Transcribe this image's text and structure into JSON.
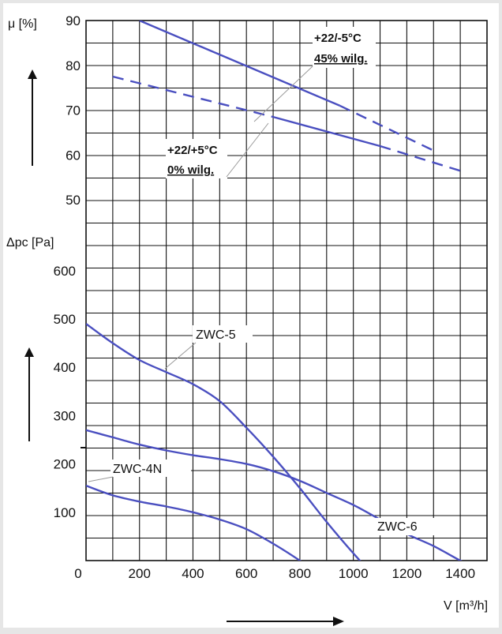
{
  "chart_data": [
    {
      "type": "line",
      "title": "",
      "ylabel": "μ [%]",
      "yticks": [
        50,
        60,
        70,
        80,
        90
      ],
      "ylim": [
        46,
        90
      ],
      "xlim": [
        0,
        1500
      ],
      "series": [
        {
          "name": "+22/-5°C 45% wilg.",
          "style": "solid",
          "x": [
            200,
            950
          ],
          "y": [
            90,
            71
          ]
        },
        {
          "name": "+22/-5°C 45% wilg.",
          "style": "dashed",
          "x": [
            950,
            1300
          ],
          "y": [
            71,
            61
          ]
        },
        {
          "name": "+22/+5°C 0% wilg.",
          "style": "dashed",
          "x": [
            100,
            700
          ],
          "y": [
            77.5,
            68.5
          ]
        },
        {
          "name": "+22/+5°C 0% wilg.",
          "style": "solid",
          "x": [
            700,
            1100
          ],
          "y": [
            68.5,
            62
          ]
        },
        {
          "name": "+22/+5°C 0% wilg.",
          "style": "dashed",
          "x": [
            1100,
            1400
          ],
          "y": [
            62,
            56.5
          ]
        }
      ],
      "annotations": [
        {
          "line1": "+22/-5°C",
          "line2": "45% wilg."
        },
        {
          "line1": "+22/+5°C",
          "line2": "0% wilg."
        }
      ]
    },
    {
      "type": "line",
      "title": "",
      "ylabel": "Δpc [Pa]",
      "xlabel": "V [m³/h]",
      "xticks": [
        0,
        200,
        400,
        600,
        800,
        1000,
        1200,
        1400
      ],
      "yticks": [
        100,
        200,
        300,
        400,
        500,
        600
      ],
      "xlim": [
        0,
        1500
      ],
      "ylim": [
        0,
        650
      ],
      "series": [
        {
          "name": "ZWC-5",
          "x": [
            0,
            100,
            200,
            300,
            400,
            500,
            600,
            700,
            800,
            900,
            1000,
            1100,
            1120
          ],
          "y": [
            490,
            450,
            415,
            390,
            365,
            330,
            275,
            215,
            150,
            80,
            15,
            -45,
            -55
          ]
        },
        {
          "name": "ZWC-6",
          "x": [
            0,
            100,
            200,
            300,
            400,
            500,
            600,
            700,
            800,
            900,
            1000,
            1100,
            1200,
            1300,
            1400,
            1440
          ],
          "y": [
            270,
            255,
            240,
            228,
            218,
            210,
            200,
            185,
            165,
            140,
            115,
            85,
            55,
            30,
            0,
            -10
          ]
        },
        {
          "name": "ZWC-4N",
          "x": [
            0,
            100,
            200,
            300,
            400,
            500,
            600,
            700,
            800,
            850
          ],
          "y": [
            155,
            135,
            122,
            112,
            100,
            85,
            65,
            35,
            0,
            -20
          ]
        }
      ]
    }
  ]
}
